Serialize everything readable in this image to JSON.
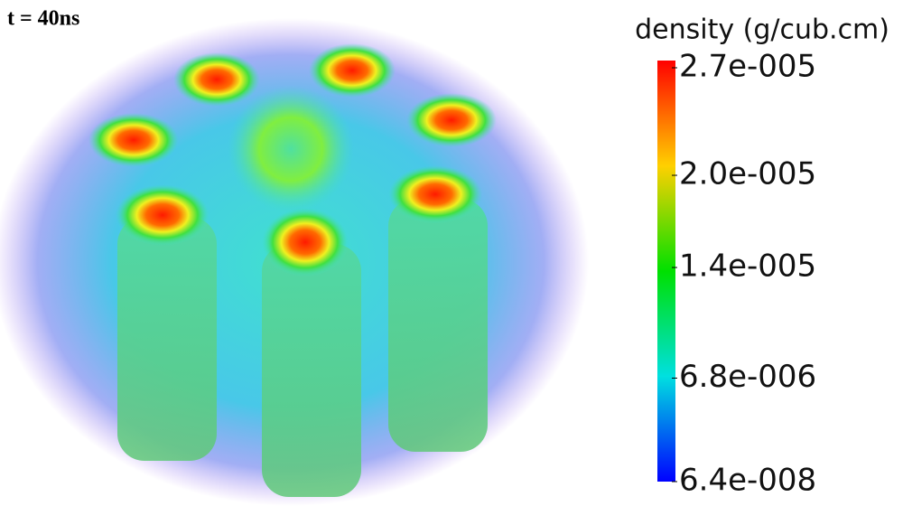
{
  "time_label": "t = 40ns",
  "colorbar": {
    "title": "density (g/cub.cm)",
    "ticks": [
      {
        "value": 2.7e-05,
        "label": "2.7e-005"
      },
      {
        "value": 2e-05,
        "label": "2.0e-005"
      },
      {
        "value": 1.4e-05,
        "label": "1.4e-005"
      },
      {
        "value": 6.8e-06,
        "label": "6.8e-006"
      },
      {
        "value": 6.4e-08,
        "label": "6.4e-008"
      }
    ]
  }
}
